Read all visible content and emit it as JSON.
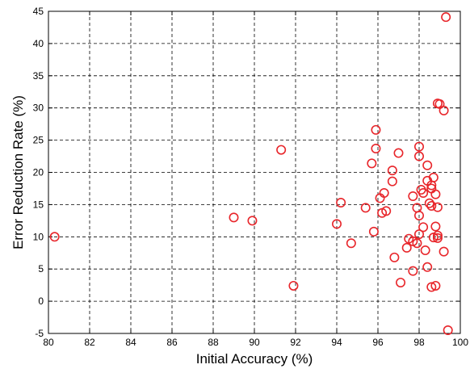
{
  "chart_data": {
    "type": "scatter",
    "title": "",
    "xlabel": "Initial Accuracy (%)",
    "ylabel": "Error Reduction Rate (%)",
    "xlim": [
      80,
      100
    ],
    "ylim": [
      -5,
      45
    ],
    "xticks": [
      80,
      82,
      84,
      86,
      88,
      90,
      92,
      94,
      96,
      98,
      100
    ],
    "yticks": [
      -5,
      0,
      5,
      10,
      15,
      20,
      25,
      30,
      35,
      40,
      45
    ],
    "grid": true,
    "marker": "circle-open",
    "marker_color": "#e8262b",
    "series": [
      {
        "points": [
          [
            80.3,
            10.0
          ],
          [
            89.0,
            13.0
          ],
          [
            89.9,
            12.5
          ],
          [
            91.3,
            23.5
          ],
          [
            91.9,
            2.4
          ],
          [
            94.0,
            12.0
          ],
          [
            94.2,
            15.3
          ],
          [
            94.7,
            9.0
          ],
          [
            95.4,
            14.5
          ],
          [
            95.7,
            21.4
          ],
          [
            95.8,
            10.8
          ],
          [
            95.9,
            26.6
          ],
          [
            95.9,
            23.7
          ],
          [
            96.1,
            16.0
          ],
          [
            96.2,
            13.7
          ],
          [
            96.3,
            16.8
          ],
          [
            96.4,
            14.0
          ],
          [
            96.7,
            20.3
          ],
          [
            96.7,
            18.6
          ],
          [
            96.8,
            6.8
          ],
          [
            97.0,
            23.0
          ],
          [
            97.1,
            2.9
          ],
          [
            97.4,
            8.3
          ],
          [
            97.5,
            9.7
          ],
          [
            97.7,
            9.3
          ],
          [
            97.7,
            16.3
          ],
          [
            97.7,
            4.7
          ],
          [
            97.9,
            14.5
          ],
          [
            97.9,
            9.0
          ],
          [
            98.0,
            10.4
          ],
          [
            98.0,
            13.3
          ],
          [
            98.0,
            24.0
          ],
          [
            98.0,
            22.5
          ],
          [
            98.1,
            17.3
          ],
          [
            98.2,
            11.5
          ],
          [
            98.2,
            16.8
          ],
          [
            98.3,
            7.9
          ],
          [
            98.4,
            18.7
          ],
          [
            98.4,
            21.1
          ],
          [
            98.4,
            5.3
          ],
          [
            98.5,
            15.2
          ],
          [
            98.6,
            17.5
          ],
          [
            98.6,
            18.0
          ],
          [
            98.6,
            14.8
          ],
          [
            98.6,
            2.2
          ],
          [
            98.7,
            19.2
          ],
          [
            98.7,
            9.9
          ],
          [
            98.8,
            11.6
          ],
          [
            98.8,
            16.6
          ],
          [
            98.8,
            2.4
          ],
          [
            98.9,
            14.6
          ],
          [
            98.9,
            10.2
          ],
          [
            98.9,
            30.7
          ],
          [
            98.9,
            9.8
          ],
          [
            99.0,
            30.6
          ],
          [
            99.2,
            29.6
          ],
          [
            99.2,
            7.7
          ],
          [
            99.3,
            44.1
          ],
          [
            99.4,
            -4.5
          ]
        ]
      }
    ]
  }
}
